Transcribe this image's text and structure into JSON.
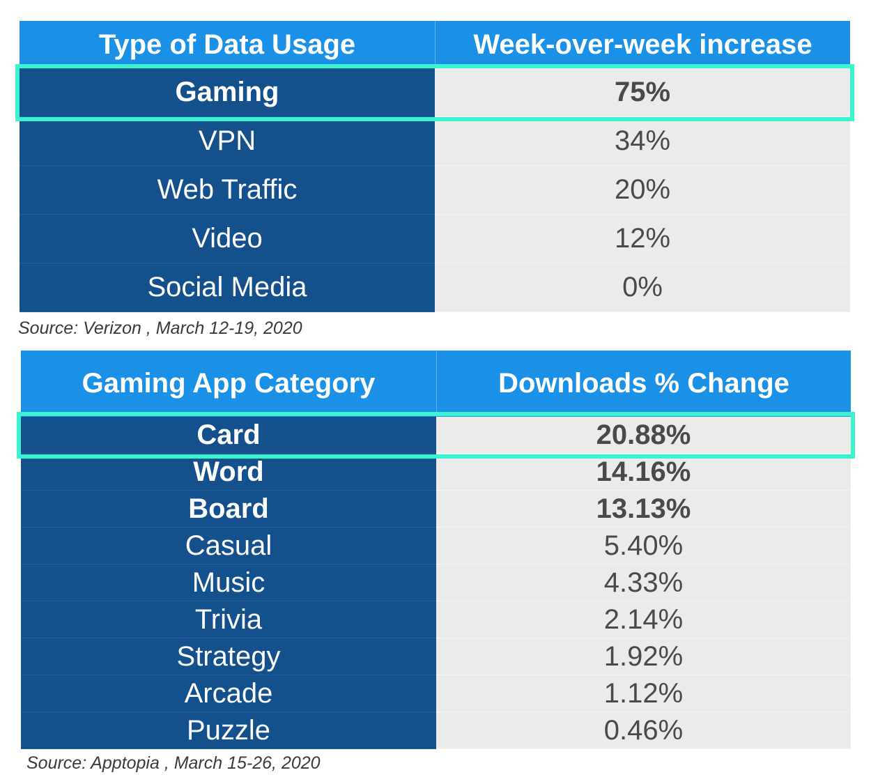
{
  "chart_data": [
    {
      "type": "table",
      "columns": [
        "Type of Data Usage",
        "Week-over-week increase"
      ],
      "rows": [
        {
          "label": "Gaming",
          "value": "75%",
          "bold": true,
          "highlighted": true
        },
        {
          "label": "VPN",
          "value": "34%",
          "bold": false,
          "highlighted": false
        },
        {
          "label": "Web Traffic",
          "value": "20%",
          "bold": false,
          "highlighted": false
        },
        {
          "label": "Video",
          "value": "12%",
          "bold": false,
          "highlighted": false
        },
        {
          "label": "Social Media",
          "value": "0%",
          "bold": false,
          "highlighted": false
        }
      ],
      "source": "Source: Verizon , March 12-19, 2020"
    },
    {
      "type": "table",
      "columns": [
        "Gaming App Category",
        "Downloads % Change"
      ],
      "rows": [
        {
          "label": "Card",
          "value": "20.88%",
          "bold": true,
          "highlighted": true
        },
        {
          "label": "Word",
          "value": "14.16%",
          "bold": true,
          "highlighted": false
        },
        {
          "label": "Board",
          "value": "13.13%",
          "bold": true,
          "highlighted": false
        },
        {
          "label": "Casual",
          "value": "5.40%",
          "bold": false,
          "highlighted": false
        },
        {
          "label": "Music",
          "value": "4.33%",
          "bold": false,
          "highlighted": false
        },
        {
          "label": "Trivia",
          "value": "2.14%",
          "bold": false,
          "highlighted": false
        },
        {
          "label": "Strategy",
          "value": "1.92%",
          "bold": false,
          "highlighted": false
        },
        {
          "label": "Arcade",
          "value": "1.12%",
          "bold": false,
          "highlighted": false
        },
        {
          "label": "Puzzle",
          "value": "0.46%",
          "bold": false,
          "highlighted": false
        }
      ],
      "source": "Source: Apptopia , March 15-26, 2020"
    }
  ],
  "colors": {
    "header_blue": "#1a91e6",
    "label_navy": "#13508c",
    "value_gray": "#ebebeb",
    "highlight_teal": "#3df2cf"
  }
}
